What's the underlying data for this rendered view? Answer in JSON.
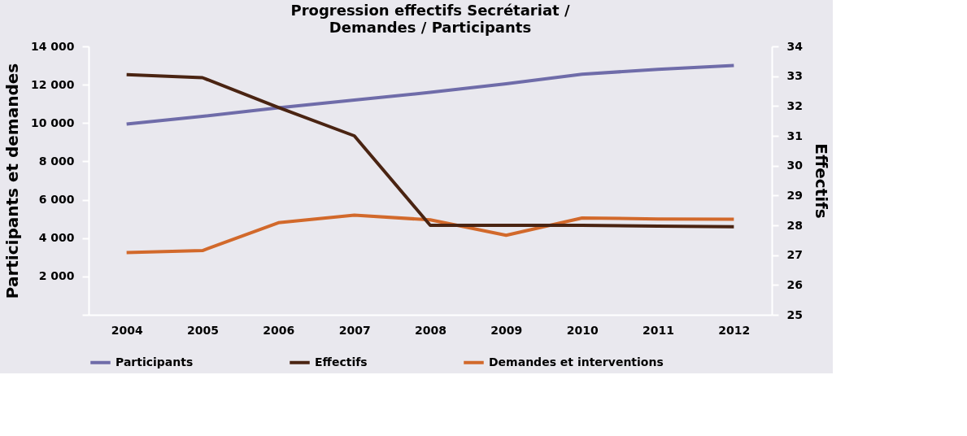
{
  "chart_data": {
    "type": "line",
    "title": "Progression effectifs Secrétariat / Demandes / Participants",
    "ylabel": "Participants et demandes",
    "y2label": "Effectifs",
    "categories": [
      "2004",
      "2005",
      "2006",
      "2007",
      "2008",
      "2009",
      "2010",
      "2011",
      "2012"
    ],
    "series": [
      {
        "name": "Participants",
        "color": "#6f6ca9",
        "values": [
          9950,
          10350,
          10800,
          11200,
          11600,
          12050,
          12550,
          12800,
          13000
        ]
      },
      {
        "name": "Effectifs",
        "color": "#4a2412",
        "axis": "y2",
        "values": [
          33.05,
          32.95,
          31.95,
          31,
          28,
          28,
          28,
          27.97,
          27.95
        ]
      },
      {
        "name": "Demandes et interventions",
        "color": "#d2692b",
        "values": [
          3250,
          3350,
          4800,
          5200,
          4950,
          4150,
          5050,
          5000,
          4980
        ]
      }
    ],
    "ylim": [
      0,
      14000
    ],
    "yticks": [
      {
        "value": 0,
        "label": null
      },
      {
        "value": 2000,
        "label": "2 000"
      },
      {
        "value": 4000,
        "label": "4 000"
      },
      {
        "value": 6000,
        "label": "6 000"
      },
      {
        "value": 8000,
        "label": "8 000"
      },
      {
        "value": 10000,
        "label": "10 000"
      },
      {
        "value": 12000,
        "label": "12 000"
      },
      {
        "value": 14000,
        "label": "14 000"
      }
    ],
    "y2lim": [
      25,
      34
    ],
    "y2ticks": [
      25,
      26,
      27,
      28,
      29,
      30,
      31,
      32,
      33,
      34
    ],
    "legend": "bottom",
    "grid": false,
    "marker": "none",
    "line_style": "solid"
  }
}
